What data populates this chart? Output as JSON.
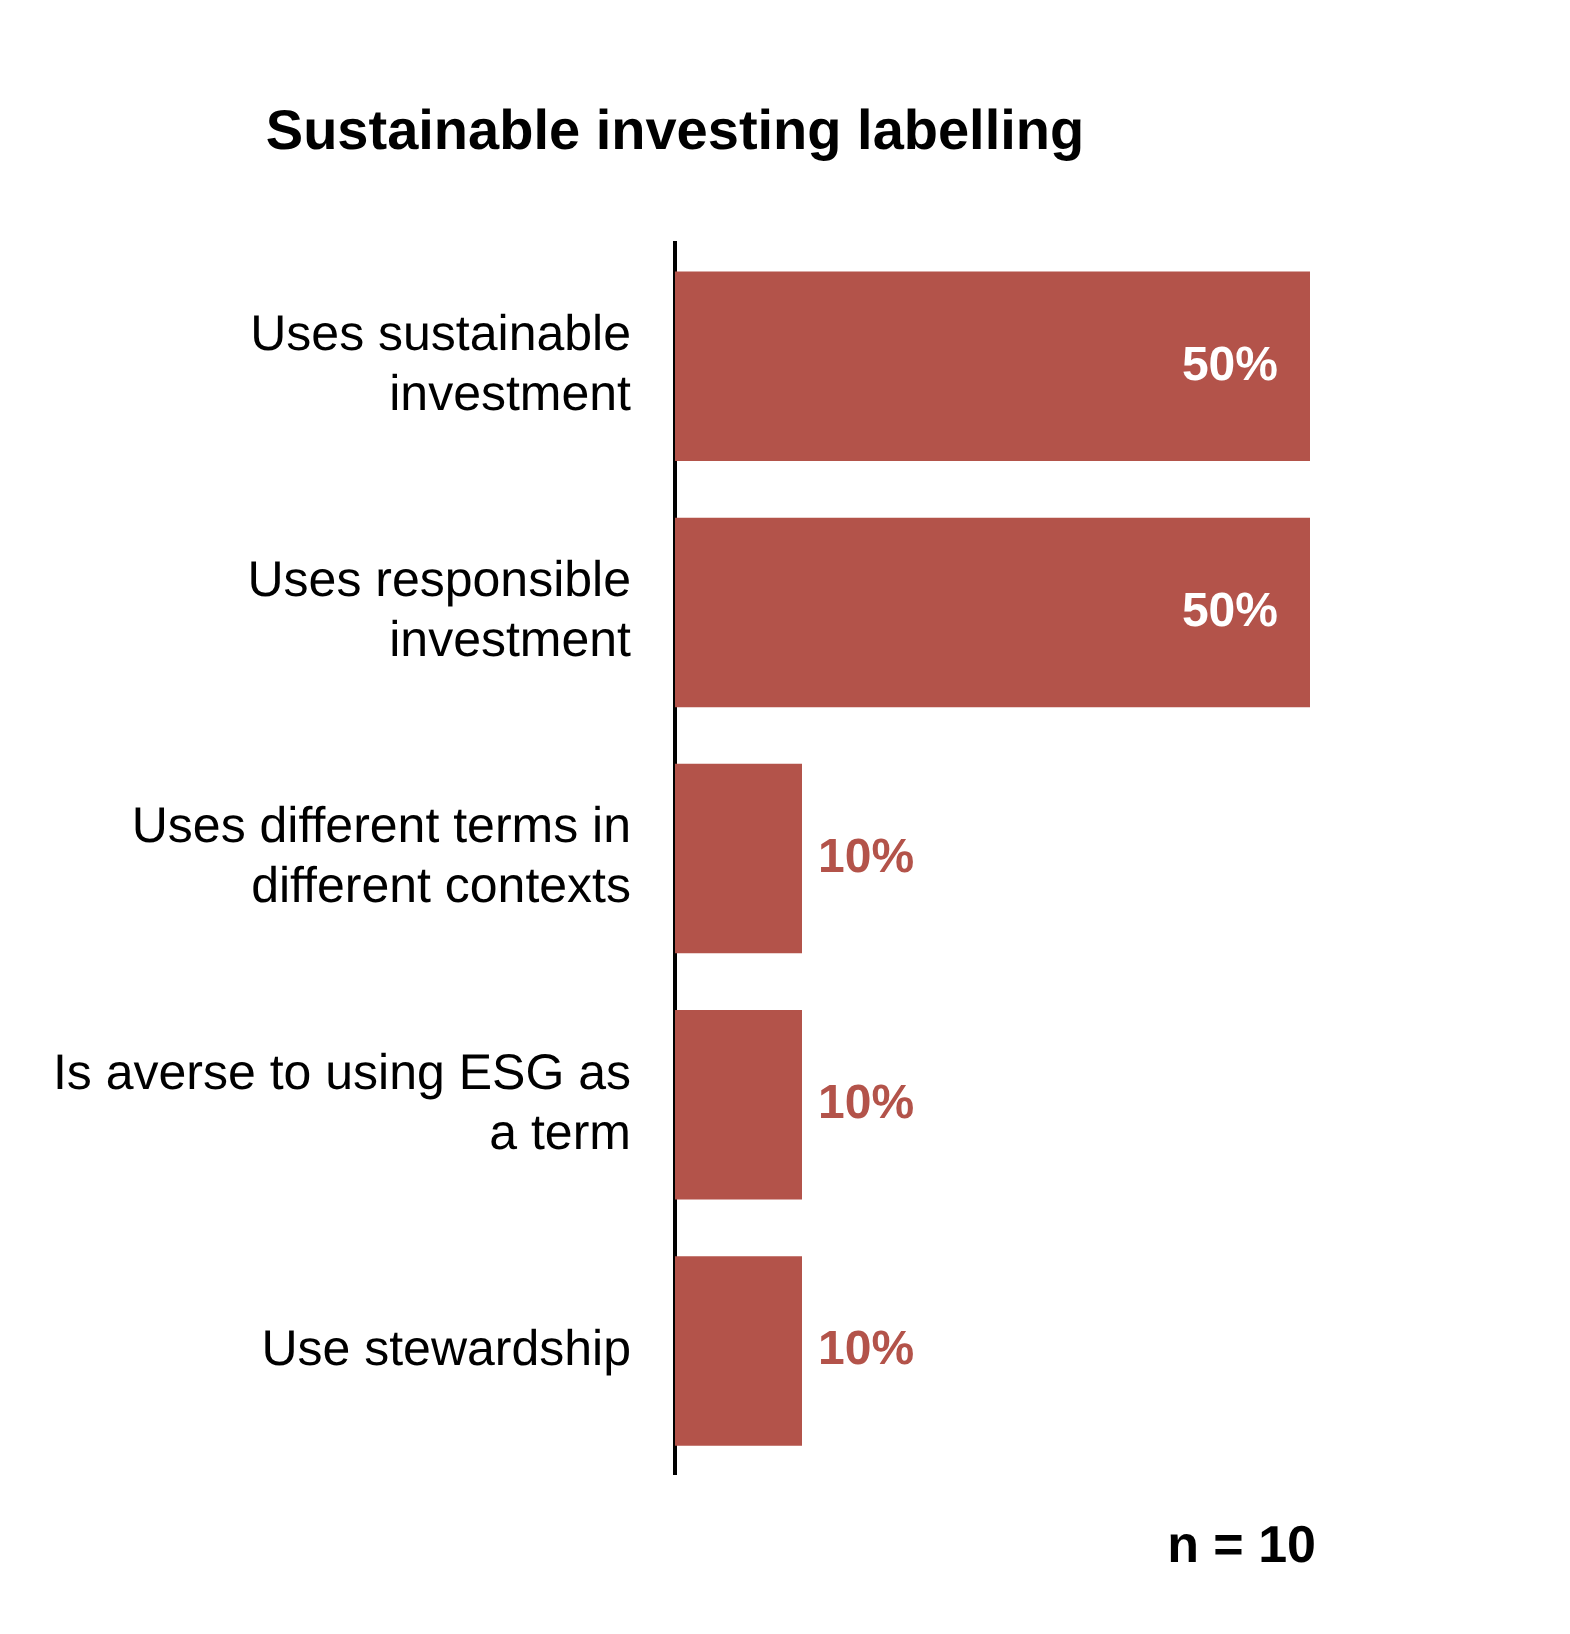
{
  "chart_data": {
    "type": "bar",
    "orientation": "horizontal",
    "title": "Sustainable investing labelling",
    "categories": [
      "Uses sustainable investment",
      "Uses responsible investment",
      "Uses different terms in different contexts",
      "Is averse to using ESG as a term",
      "Use stewardship"
    ],
    "values": [
      50,
      50,
      10,
      10,
      10
    ],
    "value_labels": [
      "50%",
      "50%",
      "10%",
      "10%",
      "10%"
    ],
    "color": "#b3534a",
    "legend": false,
    "annotations": [
      "n = 10"
    ]
  }
}
